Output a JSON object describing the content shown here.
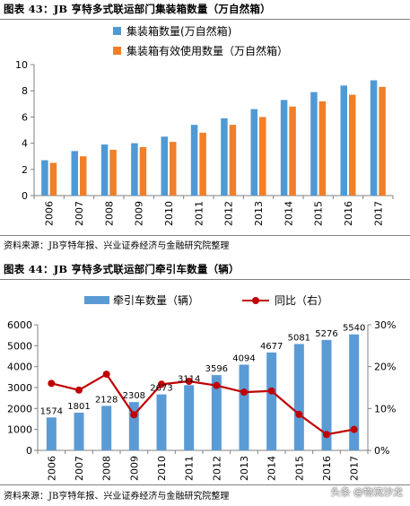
{
  "figure1": {
    "title": "图表 43：JB 亨特多式联运部门集装箱数量（万自然箱）",
    "source": "资料来源：JB亨特年报、兴业证券经济与金融研究院整理"
  },
  "figure2": {
    "title": "图表 44：JB 亨特多式联运部门牵引车数量（辆）",
    "source": "资料来源：JB亨特年报、兴业证券经济与金融研究院整理"
  },
  "watermark": "头条 @物流沙龙",
  "colors": {
    "blue": "#4f9ad5",
    "orange": "#f07f2a",
    "red_line": "#c00000"
  },
  "chart_data": [
    {
      "type": "bar",
      "categories": [
        "2006",
        "2007",
        "2008",
        "2009",
        "2010",
        "2011",
        "2012",
        "2013",
        "2014",
        "2015",
        "2016",
        "2017"
      ],
      "series": [
        {
          "name": "集装箱数量(万自然箱)",
          "color": "#4f9ad5",
          "values": [
            2.7,
            3.4,
            3.9,
            4.0,
            4.5,
            5.4,
            5.9,
            6.6,
            7.3,
            7.9,
            8.4,
            8.8
          ]
        },
        {
          "name": "集装箱有效使用数量（万自然箱）",
          "color": "#f07f2a",
          "values": [
            2.5,
            3.0,
            3.5,
            3.7,
            4.1,
            4.8,
            5.4,
            6.0,
            6.8,
            7.2,
            7.7,
            8.3
          ]
        }
      ],
      "ylim": [
        0,
        10
      ],
      "yticks": [
        0,
        2,
        4,
        6,
        8,
        10
      ],
      "grid": false,
      "legend": "top"
    },
    {
      "type": "bar",
      "categories": [
        "2006",
        "2007",
        "2008",
        "2009",
        "2010",
        "2011",
        "2012",
        "2013",
        "2014",
        "2015",
        "2016",
        "2017"
      ],
      "series": [
        {
          "name": "牵引车数量（辆）",
          "color": "#5b9bd5",
          "axis": "left",
          "values": [
            1574,
            1801,
            2128,
            2308,
            2673,
            3114,
            3596,
            4094,
            4677,
            5081,
            5276,
            5540
          ],
          "labels": [
            "1574",
            "1801",
            "2128",
            "2308",
            "2673",
            "3114",
            "3596",
            "4094",
            "4677",
            "5081",
            "5276",
            "5540"
          ]
        },
        {
          "name": "同比（右）",
          "type": "line",
          "color": "#c00000",
          "axis": "right",
          "values": [
            0.16,
            0.144,
            0.182,
            0.085,
            0.158,
            0.165,
            0.155,
            0.139,
            0.142,
            0.086,
            0.038,
            0.05
          ]
        }
      ],
      "ylim": [
        0,
        6000
      ],
      "yticks": [
        0,
        1000,
        2000,
        3000,
        4000,
        5000,
        6000
      ],
      "y2lim": [
        0,
        0.3
      ],
      "y2ticks": [
        "0%",
        "10%",
        "20%",
        "30%"
      ],
      "grid": false,
      "legend": "top"
    }
  ]
}
